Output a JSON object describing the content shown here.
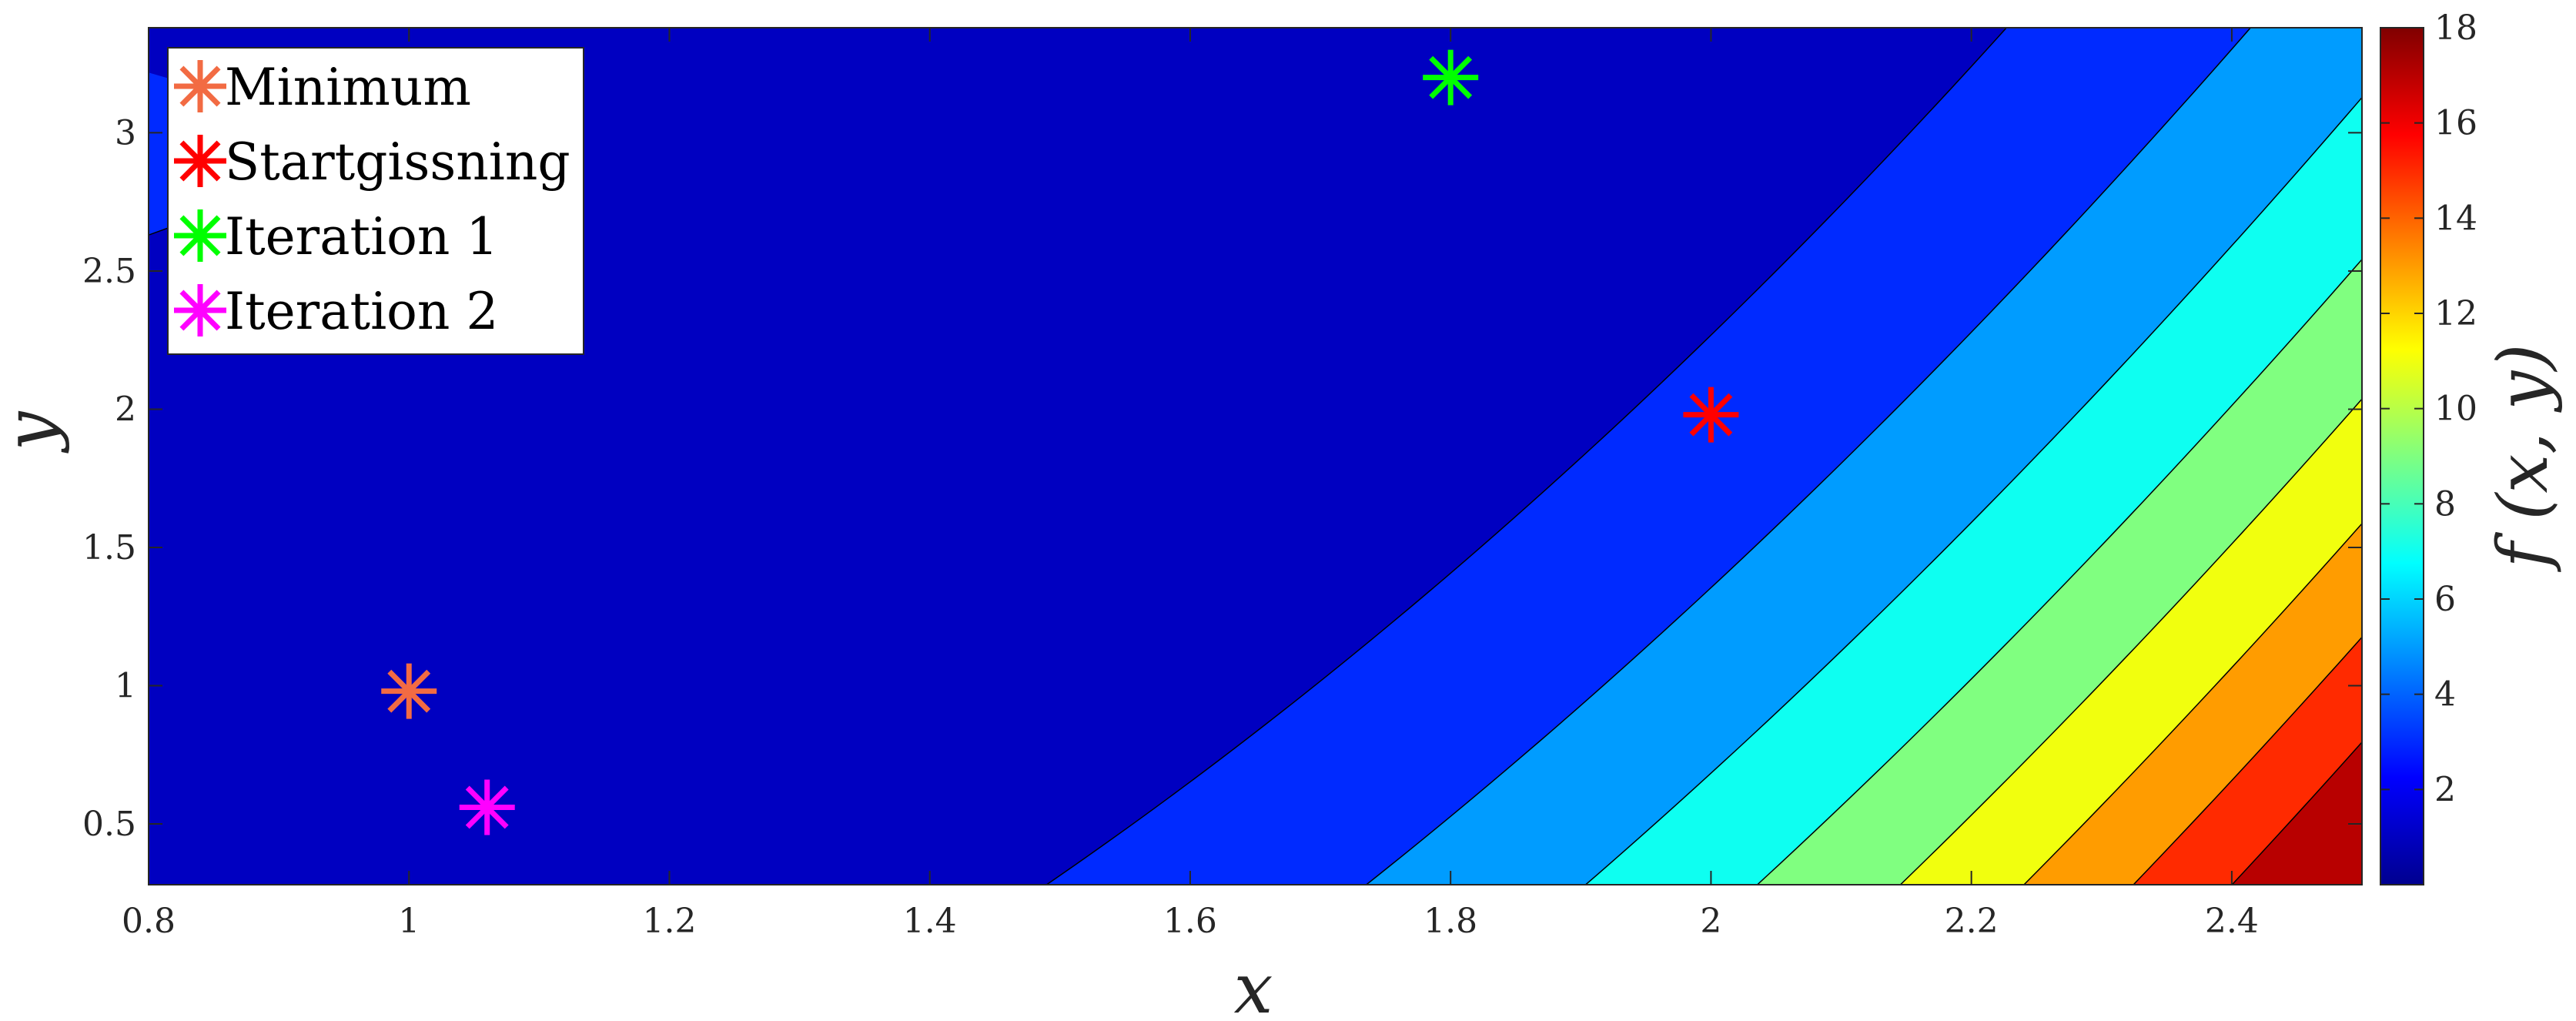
{
  "chart_data": {
    "type": "contour",
    "title": "",
    "xlabel": "x",
    "ylabel": "y",
    "colorbar_label": "f (x, y)",
    "xlim": [
      0.8,
      2.5
    ],
    "ylim": [
      0.28,
      3.38
    ],
    "x_ticks": [
      "0.8",
      "1",
      "1.2",
      "1.4",
      "1.6",
      "1.8",
      "2",
      "2.2",
      "2.4"
    ],
    "y_ticks": [
      "0.5",
      "1",
      "1.5",
      "2",
      "2.5",
      "3"
    ],
    "colorbar_range": [
      0,
      18
    ],
    "colorbar_ticks": [
      "2",
      "4",
      "6",
      "8",
      "10",
      "12",
      "14",
      "16",
      "18"
    ],
    "colormap": "jet",
    "contour_levels": [
      2,
      4,
      6,
      8,
      10,
      12,
      14,
      16
    ],
    "legend_position": "top-left",
    "series": [
      {
        "name": "Minimum",
        "type": "scatter",
        "marker": "asterisk",
        "color": "#f26b43",
        "x": 1.0,
        "y": 0.98
      },
      {
        "name": "Startgissning",
        "type": "scatter",
        "marker": "asterisk",
        "color": "#ff0000",
        "x": 2.0,
        "y": 1.98
      },
      {
        "name": "Iteration 1",
        "type": "scatter",
        "marker": "asterisk",
        "color": "#00ff00",
        "x": 1.8,
        "y": 3.2
      },
      {
        "name": "Iteration 2",
        "type": "scatter",
        "marker": "asterisk",
        "color": "#ff00ff",
        "x": 1.06,
        "y": 0.56
      }
    ]
  }
}
